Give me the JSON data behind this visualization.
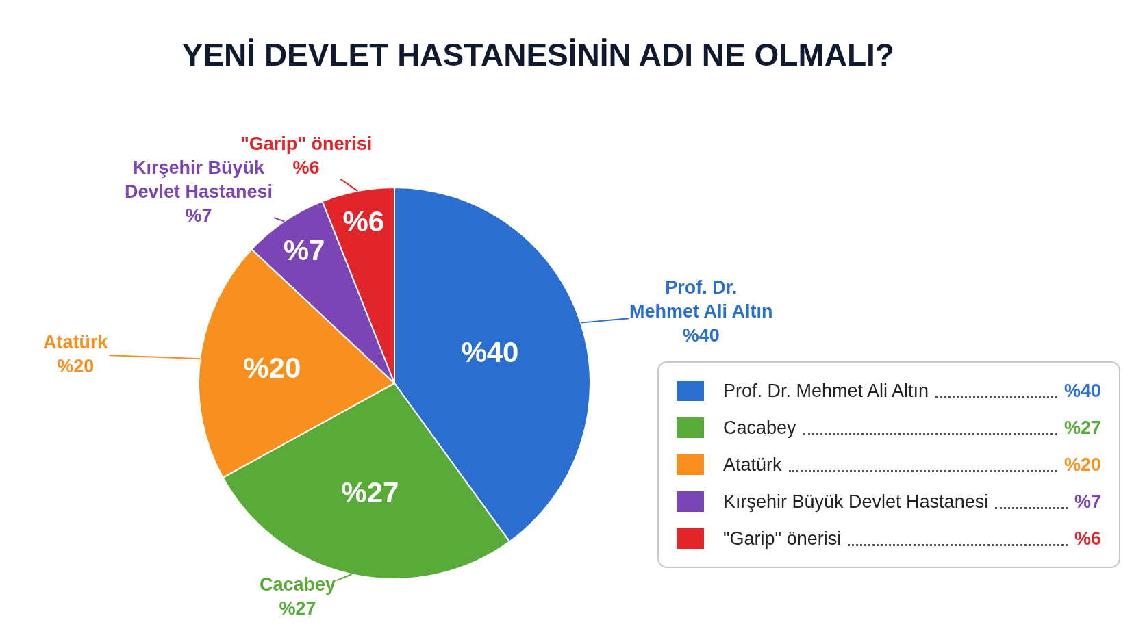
{
  "chart_data": {
    "type": "pie",
    "title": "YENİ DEVLET HASTANESİNİN ADI NE OLMALI?",
    "categories": [
      "Prof. Dr. Mehmet Ali Altın",
      "Cacabey",
      "Atatürk",
      "Kırşehir Büyük Devlet Hastanesi",
      "\"Garip\" önerisi"
    ],
    "values": [
      40,
      27,
      20,
      7,
      6
    ],
    "colors": [
      "#2a6fd0",
      "#5aaa3a",
      "#f7901e",
      "#7b45b5",
      "#e0262a"
    ],
    "value_labels": [
      "%40",
      "%27",
      "%20",
      "%7",
      "%6"
    ],
    "legend": "right"
  }
}
